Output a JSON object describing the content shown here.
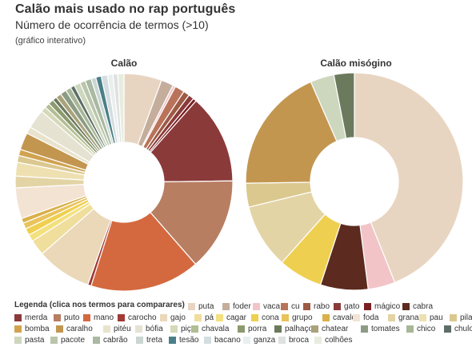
{
  "header": {
    "title": "Calão mais usado no rap português",
    "subtitle": "Número de ocorrência de termos (>10)",
    "note": "(gráfico interativo)"
  },
  "legend": {
    "title": "Legenda (clica nos termos para comparares)",
    "items": [
      {
        "label": "puta",
        "color": "#e8d5c1"
      },
      {
        "label": "foder",
        "color": "#c4ad9b"
      },
      {
        "label": "vaca",
        "color": "#f2c4c8"
      },
      {
        "label": "cu",
        "color": "#b9735a"
      },
      {
        "label": "rabo",
        "color": "#9d5a45"
      },
      {
        "label": "gato",
        "color": "#8b3a3a"
      },
      {
        "label": "mágico",
        "color": "#7a1f22"
      },
      {
        "label": "cabra",
        "color": "#5c2a1e"
      },
      {
        "label": "merda",
        "color": "#8b3a3a"
      },
      {
        "label": "puto",
        "color": "#b87e62"
      },
      {
        "label": "mano",
        "color": "#d4693f"
      },
      {
        "label": "carocho",
        "color": "#a23a35"
      },
      {
        "label": "gajo",
        "color": "#ead8b8"
      },
      {
        "label": "pá",
        "color": "#f0de9c"
      },
      {
        "label": "cagar",
        "color": "#f3e07e"
      },
      {
        "label": "cona",
        "color": "#efcf4f"
      },
      {
        "label": "grupo",
        "color": "#e9c35c"
      },
      {
        "label": "cavalo",
        "color": "#d9b04a"
      },
      {
        "label": "foda",
        "color": "#f3e3d3"
      },
      {
        "label": "grana",
        "color": "#e3d4a6"
      },
      {
        "label": "pau",
        "color": "#eee0b0"
      },
      {
        "label": "pila",
        "color": "#dbc88f"
      },
      {
        "label": "bomba",
        "color": "#d1a350"
      },
      {
        "label": "caralho",
        "color": "#c39650"
      },
      {
        "label": "pitéu",
        "color": "#e9e3cd"
      },
      {
        "label": "bófia",
        "color": "#e5e2d2"
      },
      {
        "label": "piça",
        "color": "#d6d9b8"
      },
      {
        "label": "chavala",
        "color": "#b2bd94"
      },
      {
        "label": "porra",
        "color": "#8c9a6f"
      },
      {
        "label": "palhaço",
        "color": "#6b7a5c"
      },
      {
        "label": "chatear",
        "color": "#a9a27a"
      },
      {
        "label": "tomates",
        "color": "#8c9c84"
      },
      {
        "label": "chico",
        "color": "#a7b797"
      },
      {
        "label": "chulo",
        "color": "#5e6e66"
      },
      {
        "label": "pasta",
        "color": "#cdd7be"
      },
      {
        "label": "pacote",
        "color": "#bac5ab"
      },
      {
        "label": "cabrão",
        "color": "#a9b9a2"
      },
      {
        "label": "treta",
        "color": "#c9d6d1"
      },
      {
        "label": "tesão",
        "color": "#4a7f88"
      },
      {
        "label": "bacano",
        "color": "#d4dde0"
      },
      {
        "label": "ganza",
        "color": "#eaeeee"
      },
      {
        "label": "broca",
        "color": "#dde2e0"
      },
      {
        "label": "colhões",
        "color": "#e8ecdf"
      }
    ]
  },
  "chart_data": [
    {
      "type": "pie",
      "title": "Calão",
      "slices": [
        {
          "label": "puta",
          "value": 5.5,
          "color": "#e8d5c1"
        },
        {
          "label": "foder",
          "value": 1.8,
          "color": "#c4ad9b"
        },
        {
          "label": "vaca",
          "value": 0.4,
          "color": "#f2c4c8"
        },
        {
          "label": "cu",
          "value": 1.4,
          "color": "#b9735a"
        },
        {
          "label": "rabo",
          "value": 0.9,
          "color": "#9d5a45"
        },
        {
          "label": "gato",
          "value": 0.8,
          "color": "#8b3a3a"
        },
        {
          "label": "mágico",
          "value": 0.5,
          "color": "#7a1f22"
        },
        {
          "label": "merda",
          "value": 13.0,
          "color": "#8b3a3a"
        },
        {
          "label": "puto",
          "value": 13.5,
          "color": "#b87e62"
        },
        {
          "label": "mano",
          "value": 16.0,
          "color": "#d4693f"
        },
        {
          "label": "carocho",
          "value": 0.5,
          "color": "#a23a35"
        },
        {
          "label": "gajo",
          "value": 8.0,
          "color": "#ead8b8"
        },
        {
          "label": "pá",
          "value": 2.3,
          "color": "#f0de9c"
        },
        {
          "label": "cagar",
          "value": 1.0,
          "color": "#f3e07e"
        },
        {
          "label": "cona",
          "value": 1.0,
          "color": "#efcf4f"
        },
        {
          "label": "grupo",
          "value": 0.9,
          "color": "#e9c35c"
        },
        {
          "label": "cavalo",
          "value": 0.7,
          "color": "#d9b04a"
        },
        {
          "label": "foda",
          "value": 4.5,
          "color": "#f3e3d3"
        },
        {
          "label": "grana",
          "value": 1.7,
          "color": "#e3d4a6"
        },
        {
          "label": "pau",
          "value": 2.0,
          "color": "#eee0b0"
        },
        {
          "label": "pila",
          "value": 1.0,
          "color": "#dbc88f"
        },
        {
          "label": "bomba",
          "value": 0.9,
          "color": "#d1a350"
        },
        {
          "label": "caralho",
          "value": 2.5,
          "color": "#c39650"
        },
        {
          "label": "pitéu",
          "value": 1.0,
          "color": "#e9e3cd"
        },
        {
          "label": "bófia",
          "value": 2.8,
          "color": "#e5e2d2"
        },
        {
          "label": "piça",
          "value": 0.8,
          "color": "#d6d9b8"
        },
        {
          "label": "chavala",
          "value": 0.7,
          "color": "#b2bd94"
        },
        {
          "label": "porra",
          "value": 0.8,
          "color": "#8c9a6f"
        },
        {
          "label": "palhaço",
          "value": 0.6,
          "color": "#6b7a5c"
        },
        {
          "label": "chatear",
          "value": 0.8,
          "color": "#a9a27a"
        },
        {
          "label": "tomates",
          "value": 0.9,
          "color": "#8c9c84"
        },
        {
          "label": "chico",
          "value": 0.8,
          "color": "#a7b797"
        },
        {
          "label": "chulo",
          "value": 0.6,
          "color": "#5e6e66"
        },
        {
          "label": "pasta",
          "value": 0.9,
          "color": "#cdd7be"
        },
        {
          "label": "pacote",
          "value": 0.8,
          "color": "#bac5ab"
        },
        {
          "label": "cabrão",
          "value": 0.9,
          "color": "#a9b9a2"
        },
        {
          "label": "treta",
          "value": 0.7,
          "color": "#c9d6d1"
        },
        {
          "label": "tesão",
          "value": 0.8,
          "color": "#4a7f88"
        },
        {
          "label": "bacano",
          "value": 0.9,
          "color": "#d4dde0"
        },
        {
          "label": "ganza",
          "value": 0.8,
          "color": "#eaeeee"
        },
        {
          "label": "broca",
          "value": 0.7,
          "color": "#dde2e0"
        },
        {
          "label": "colhões",
          "value": 0.9,
          "color": "#e8ecdf"
        }
      ]
    },
    {
      "type": "pie",
      "title": "Calão misógino",
      "slices": [
        {
          "label": "puta",
          "value": 43.5,
          "color": "#e8d5c1"
        },
        {
          "label": "vaca",
          "value": 4.0,
          "color": "#f2c4c8"
        },
        {
          "label": "cabra",
          "value": 7.0,
          "color": "#5c2a1e"
        },
        {
          "label": "cona",
          "value": 6.5,
          "color": "#efcf4f"
        },
        {
          "label": "grana",
          "value": 9.5,
          "color": "#e3d4a6"
        },
        {
          "label": "pila",
          "value": 3.5,
          "color": "#dbc88f"
        },
        {
          "label": "caralho",
          "value": 18.5,
          "color": "#c39650"
        },
        {
          "label": "pasta",
          "value": 3.5,
          "color": "#cdd7be"
        },
        {
          "label": "chatear",
          "value": 3.0,
          "color": "#6b7a5c"
        }
      ]
    }
  ]
}
